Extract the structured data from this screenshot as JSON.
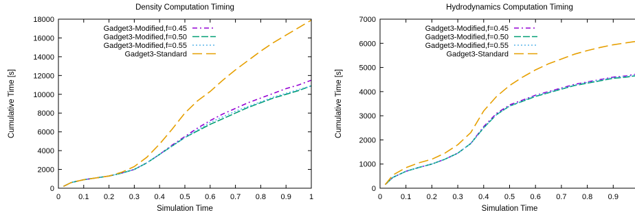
{
  "chart_data": [
    {
      "type": "line",
      "title": "Density Computation Timing",
      "xlabel": "Simulation Time",
      "ylabel": "Cumulative Time [s]",
      "xlim": [
        0,
        1
      ],
      "ylim": [
        0,
        18000
      ],
      "xticks": [
        0,
        0.1,
        0.2,
        0.3,
        0.4,
        0.5,
        0.6,
        0.7,
        0.8,
        0.9,
        1
      ],
      "xtick_labels": [
        "0",
        "0.1",
        "0.2",
        "0.3",
        "0.4",
        "0.5",
        "0.6",
        "0.7",
        "0.8",
        "0.9",
        "1"
      ],
      "yticks": [
        0,
        2000,
        4000,
        6000,
        8000,
        10000,
        12000,
        14000,
        16000,
        18000
      ],
      "ytick_labels": [
        "0",
        "2000",
        "4000",
        "6000",
        "8000",
        "10000",
        "12000",
        "14000",
        "16000",
        "18000"
      ],
      "grid": false,
      "legend_position": "top-left",
      "series": [
        {
          "name": "Gadget3-Modified,f=0.45",
          "color": "#9400d3",
          "dash": "7,4,2,4",
          "x": [
            0.02,
            0.05,
            0.1,
            0.15,
            0.2,
            0.25,
            0.3,
            0.35,
            0.4,
            0.45,
            0.5,
            0.55,
            0.6,
            0.65,
            0.7,
            0.75,
            0.8,
            0.85,
            0.9,
            0.95,
            1.0
          ],
          "y": [
            200,
            600,
            900,
            1100,
            1300,
            1600,
            2000,
            2700,
            3600,
            4600,
            5500,
            6400,
            7200,
            7900,
            8500,
            9100,
            9600,
            10100,
            10600,
            11000,
            11500
          ]
        },
        {
          "name": "Gadget3-Modified,f=0.50",
          "color": "#009e73",
          "dash": "10,3",
          "x": [
            0.02,
            0.05,
            0.1,
            0.15,
            0.2,
            0.25,
            0.3,
            0.35,
            0.4,
            0.45,
            0.5,
            0.55,
            0.6,
            0.65,
            0.7,
            0.75,
            0.8,
            0.85,
            0.9,
            0.95,
            1.0
          ],
          "y": [
            200,
            600,
            900,
            1100,
            1300,
            1600,
            2000,
            2700,
            3600,
            4500,
            5400,
            6100,
            6800,
            7400,
            8000,
            8600,
            9100,
            9600,
            10000,
            10400,
            10900
          ]
        },
        {
          "name": "Gadget3-Modified,f=0.55",
          "color": "#56b4e9",
          "dash": "2,3",
          "x": [
            0.02,
            0.05,
            0.1,
            0.15,
            0.2,
            0.25,
            0.3,
            0.35,
            0.4,
            0.45,
            0.5,
            0.55,
            0.6,
            0.65,
            0.7,
            0.75,
            0.8,
            0.85,
            0.9,
            0.95,
            1.0
          ],
          "y": [
            200,
            600,
            900,
            1100,
            1300,
            1600,
            2000,
            2700,
            3600,
            4500,
            5400,
            6200,
            7000,
            7600,
            8200,
            8700,
            9200,
            9700,
            10100,
            10500,
            10900
          ]
        },
        {
          "name": "Gadget3-Standard",
          "color": "#e69f00",
          "dash": "14,6",
          "x": [
            0.02,
            0.05,
            0.1,
            0.15,
            0.2,
            0.25,
            0.3,
            0.35,
            0.4,
            0.45,
            0.5,
            0.55,
            0.6,
            0.65,
            0.7,
            0.75,
            0.8,
            0.85,
            0.9,
            0.95,
            1.0
          ],
          "y": [
            200,
            600,
            900,
            1100,
            1300,
            1700,
            2300,
            3300,
            4700,
            6300,
            8000,
            9300,
            10300,
            11500,
            12600,
            13600,
            14600,
            15500,
            16300,
            17100,
            17900
          ]
        }
      ]
    },
    {
      "type": "line",
      "title": "Hydrodynamics Computation Timing",
      "xlabel": "Simulation Time",
      "ylabel": "Cumulative Time [s]",
      "xlim": [
        0,
        1
      ],
      "ylim": [
        0,
        7000
      ],
      "xticks": [
        0,
        0.1,
        0.2,
        0.3,
        0.4,
        0.5,
        0.6,
        0.7,
        0.8,
        0.9
      ],
      "xtick_labels": [
        "0",
        "0.1",
        "0.2",
        "0.3",
        "0.4",
        "0.5",
        "0.6",
        "0.7",
        "0.8",
        "0.9"
      ],
      "yticks": [
        0,
        1000,
        2000,
        3000,
        4000,
        5000,
        6000,
        7000
      ],
      "ytick_labels": [
        "0",
        "1000",
        "2000",
        "3000",
        "4000",
        "5000",
        "6000",
        "7000"
      ],
      "grid": false,
      "legend_position": "top-left",
      "series": [
        {
          "name": "Gadget3-Modified,f=0.45",
          "color": "#9400d3",
          "dash": "7,4,2,4",
          "x": [
            0.02,
            0.05,
            0.1,
            0.15,
            0.2,
            0.25,
            0.3,
            0.35,
            0.4,
            0.45,
            0.5,
            0.55,
            0.6,
            0.65,
            0.7,
            0.75,
            0.8,
            0.85,
            0.9,
            0.95,
            1.0
          ],
          "y": [
            150,
            450,
            700,
            860,
            1000,
            1200,
            1450,
            1850,
            2550,
            3100,
            3450,
            3650,
            3850,
            4000,
            4150,
            4300,
            4400,
            4500,
            4600,
            4650,
            4750
          ]
        },
        {
          "name": "Gadget3-Modified,f=0.50",
          "color": "#009e73",
          "dash": "10,3",
          "x": [
            0.02,
            0.05,
            0.1,
            0.15,
            0.2,
            0.25,
            0.3,
            0.35,
            0.4,
            0.45,
            0.5,
            0.55,
            0.6,
            0.65,
            0.7,
            0.75,
            0.8,
            0.85,
            0.9,
            0.95,
            1.0
          ],
          "y": [
            150,
            450,
            700,
            860,
            1000,
            1200,
            1450,
            1850,
            2500,
            3050,
            3400,
            3600,
            3800,
            3950,
            4100,
            4250,
            4350,
            4450,
            4550,
            4600,
            4680
          ]
        },
        {
          "name": "Gadget3-Modified,f=0.55",
          "color": "#56b4e9",
          "dash": "2,3",
          "x": [
            0.02,
            0.05,
            0.1,
            0.15,
            0.2,
            0.25,
            0.3,
            0.35,
            0.4,
            0.45,
            0.5,
            0.55,
            0.6,
            0.65,
            0.7,
            0.75,
            0.8,
            0.85,
            0.9,
            0.95,
            1.0
          ],
          "y": [
            150,
            450,
            700,
            860,
            1000,
            1200,
            1450,
            1850,
            2500,
            3050,
            3400,
            3620,
            3830,
            3970,
            4120,
            4270,
            4380,
            4480,
            4580,
            4630,
            4700
          ]
        },
        {
          "name": "Gadget3-Standard",
          "color": "#e69f00",
          "dash": "14,6",
          "x": [
            0.02,
            0.05,
            0.1,
            0.15,
            0.2,
            0.25,
            0.3,
            0.35,
            0.4,
            0.45,
            0.5,
            0.55,
            0.6,
            0.65,
            0.7,
            0.75,
            0.8,
            0.85,
            0.9,
            0.95,
            1.0
          ],
          "y": [
            150,
            550,
            850,
            1050,
            1200,
            1450,
            1800,
            2300,
            3200,
            3800,
            4250,
            4600,
            4900,
            5150,
            5350,
            5550,
            5700,
            5830,
            5940,
            6020,
            6100
          ]
        }
      ]
    }
  ]
}
